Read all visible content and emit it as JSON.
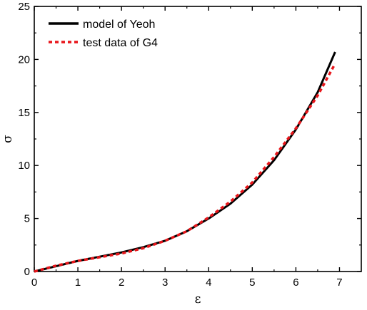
{
  "chart_data": {
    "type": "line",
    "title": "",
    "xlabel": "ε",
    "ylabel": "σ",
    "xlim": [
      0,
      7.5
    ],
    "ylim": [
      0,
      25
    ],
    "xticks": [
      "0",
      "1",
      "2",
      "3",
      "4",
      "5",
      "6",
      "7"
    ],
    "yticks": [
      "0",
      "5",
      "10",
      "15",
      "20",
      "25"
    ],
    "grid": false,
    "legend_position": "top-left",
    "series": [
      {
        "name": "model of Yeoh",
        "style": "solid",
        "color": "#000000",
        "x": [
          0,
          0.5,
          1.0,
          1.5,
          2.0,
          2.5,
          3.0,
          3.5,
          4.0,
          4.5,
          5.0,
          5.5,
          6.0,
          6.5,
          6.9
        ],
        "y": [
          0,
          0.5,
          1.0,
          1.4,
          1.8,
          2.3,
          2.9,
          3.8,
          5.0,
          6.4,
          8.2,
          10.5,
          13.4,
          16.9,
          20.7
        ]
      },
      {
        "name": "test data of G4",
        "style": "dashed",
        "color": "#e8151a",
        "x": [
          0,
          0.5,
          1.0,
          1.5,
          2.0,
          2.5,
          3.0,
          3.5,
          4.0,
          4.5,
          5.0,
          5.5,
          6.0,
          6.5,
          6.9
        ],
        "y": [
          0,
          0.55,
          1.0,
          1.35,
          1.7,
          2.2,
          2.9,
          3.8,
          5.1,
          6.6,
          8.4,
          10.8,
          13.5,
          16.6,
          19.6
        ]
      }
    ]
  }
}
